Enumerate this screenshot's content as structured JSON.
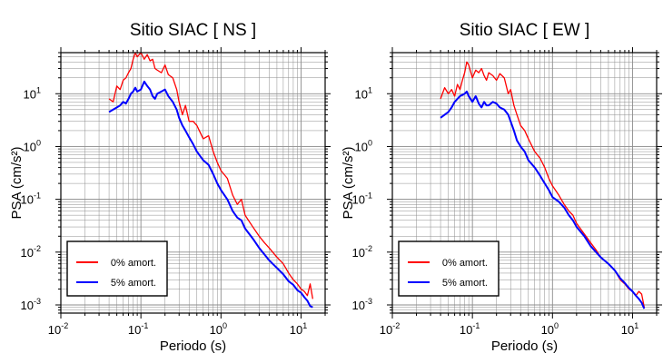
{
  "chart_data": [
    {
      "type": "line",
      "title": "Sitio SIAC [ NS ]",
      "xlabel": "Periodo (s)",
      "ylabel": "PSA (cm/s²)",
      "xscale": "log",
      "yscale": "log",
      "xlim": [
        0.01,
        20
      ],
      "ylim": [
        0.0007,
        60
      ],
      "grid": true,
      "legend_position": "bottom-left",
      "x_ticks": [
        {
          "value": 0.01,
          "base": "10",
          "exp": "-2"
        },
        {
          "value": 0.1,
          "base": "10",
          "exp": "-1"
        },
        {
          "value": 1,
          "base": "10",
          "exp": "0"
        },
        {
          "value": 10,
          "base": "10",
          "exp": "1"
        }
      ],
      "y_ticks": [
        {
          "value": 0.001,
          "base": "10",
          "exp": "-3"
        },
        {
          "value": 0.01,
          "base": "10",
          "exp": "-2"
        },
        {
          "value": 0.1,
          "base": "10",
          "exp": "-1"
        },
        {
          "value": 1,
          "base": "10",
          "exp": "0"
        },
        {
          "value": 10,
          "base": "10",
          "exp": "1"
        }
      ],
      "series": [
        {
          "name": "0% amort.",
          "color": "#ff0000",
          "x": [
            0.04,
            0.045,
            0.05,
            0.055,
            0.06,
            0.065,
            0.07,
            0.075,
            0.08,
            0.085,
            0.09,
            0.1,
            0.11,
            0.12,
            0.13,
            0.14,
            0.15,
            0.16,
            0.18,
            0.2,
            0.22,
            0.25,
            0.28,
            0.3,
            0.33,
            0.36,
            0.4,
            0.45,
            0.5,
            0.6,
            0.7,
            0.8,
            0.9,
            1.0,
            1.2,
            1.4,
            1.6,
            1.8,
            2.0,
            2.5,
            3.0,
            3.5,
            4.0,
            5.0,
            6.0,
            7.0,
            8.0,
            9.0,
            10.0,
            11.0,
            12.0,
            13.0,
            14.0
          ],
          "y": [
            8,
            7,
            14,
            12,
            18,
            20,
            25,
            30,
            45,
            60,
            50,
            60,
            45,
            55,
            42,
            45,
            30,
            28,
            25,
            35,
            23,
            20,
            12,
            7,
            4,
            6,
            3,
            3,
            2.5,
            1.4,
            1.6,
            0.8,
            0.5,
            0.35,
            0.25,
            0.12,
            0.08,
            0.1,
            0.05,
            0.03,
            0.02,
            0.015,
            0.012,
            0.008,
            0.006,
            0.004,
            0.003,
            0.0025,
            0.002,
            0.0018,
            0.0015,
            0.0025,
            0.0013
          ]
        },
        {
          "name": "5% amort.",
          "color": "#0000ff",
          "x": [
            0.04,
            0.045,
            0.05,
            0.055,
            0.06,
            0.065,
            0.07,
            0.075,
            0.08,
            0.085,
            0.09,
            0.1,
            0.11,
            0.12,
            0.13,
            0.14,
            0.15,
            0.16,
            0.18,
            0.2,
            0.22,
            0.25,
            0.28,
            0.3,
            0.33,
            0.36,
            0.4,
            0.45,
            0.5,
            0.6,
            0.7,
            0.8,
            0.9,
            1.0,
            1.2,
            1.4,
            1.6,
            1.8,
            2.0,
            2.5,
            3.0,
            3.5,
            4.0,
            5.0,
            6.0,
            7.0,
            8.0,
            9.0,
            10.0,
            11.0,
            12.0,
            13.0,
            14.0
          ],
          "y": [
            4.5,
            5,
            5.5,
            6,
            7,
            6.5,
            8,
            10,
            11,
            13,
            11,
            12,
            17,
            14,
            12,
            9,
            8,
            10,
            11,
            12,
            9,
            7,
            5,
            3.5,
            2.5,
            2,
            1.5,
            1.1,
            0.8,
            0.55,
            0.45,
            0.3,
            0.2,
            0.15,
            0.1,
            0.06,
            0.045,
            0.04,
            0.028,
            0.018,
            0.012,
            0.009,
            0.007,
            0.005,
            0.0038,
            0.0028,
            0.0024,
            0.0019,
            0.0017,
            0.0014,
            0.0012,
            0.00095,
            0.0009
          ]
        }
      ]
    },
    {
      "type": "line",
      "title": "Sitio SIAC [ EW ]",
      "xlabel": "Periodo (s)",
      "ylabel": "PSA (cm/s²)",
      "xscale": "log",
      "yscale": "log",
      "xlim": [
        0.01,
        20
      ],
      "ylim": [
        0.0007,
        60
      ],
      "grid": true,
      "legend_position": "bottom-left",
      "x_ticks": [
        {
          "value": 0.01,
          "base": "10",
          "exp": "-2"
        },
        {
          "value": 0.1,
          "base": "10",
          "exp": "-1"
        },
        {
          "value": 1,
          "base": "10",
          "exp": "0"
        },
        {
          "value": 10,
          "base": "10",
          "exp": "1"
        }
      ],
      "y_ticks": [
        {
          "value": 0.001,
          "base": "10",
          "exp": "-3"
        },
        {
          "value": 0.01,
          "base": "10",
          "exp": "-2"
        },
        {
          "value": 0.1,
          "base": "10",
          "exp": "-1"
        },
        {
          "value": 1,
          "base": "10",
          "exp": "0"
        },
        {
          "value": 10,
          "base": "10",
          "exp": "1"
        }
      ],
      "series": [
        {
          "name": "0% amort.",
          "color": "#ff0000",
          "x": [
            0.04,
            0.045,
            0.05,
            0.055,
            0.06,
            0.065,
            0.07,
            0.075,
            0.08,
            0.085,
            0.09,
            0.1,
            0.11,
            0.12,
            0.13,
            0.14,
            0.15,
            0.16,
            0.18,
            0.2,
            0.22,
            0.25,
            0.28,
            0.3,
            0.33,
            0.36,
            0.4,
            0.45,
            0.5,
            0.6,
            0.7,
            0.8,
            0.9,
            1.0,
            1.2,
            1.4,
            1.6,
            1.8,
            2.0,
            2.5,
            3.0,
            3.5,
            4.0,
            5.0,
            6.0,
            7.0,
            8.0,
            9.0,
            10.0,
            11.0,
            12.0,
            13.0,
            14.0
          ],
          "y": [
            8,
            13,
            10,
            12,
            9,
            15,
            12,
            18,
            25,
            40,
            35,
            20,
            28,
            25,
            30,
            22,
            18,
            25,
            22,
            18,
            24,
            20,
            10,
            12,
            6,
            4,
            2.5,
            2,
            1.4,
            0.8,
            0.6,
            0.4,
            0.25,
            0.18,
            0.12,
            0.08,
            0.06,
            0.05,
            0.035,
            0.022,
            0.015,
            0.011,
            0.008,
            0.006,
            0.0045,
            0.003,
            0.0025,
            0.002,
            0.0018,
            0.0015,
            0.0018,
            0.0016,
            0.0009
          ]
        },
        {
          "name": "5% amort.",
          "color": "#0000ff",
          "x": [
            0.04,
            0.045,
            0.05,
            0.055,
            0.06,
            0.065,
            0.07,
            0.075,
            0.08,
            0.085,
            0.09,
            0.1,
            0.11,
            0.12,
            0.13,
            0.14,
            0.15,
            0.16,
            0.18,
            0.2,
            0.22,
            0.25,
            0.28,
            0.3,
            0.33,
            0.36,
            0.4,
            0.45,
            0.5,
            0.6,
            0.7,
            0.8,
            0.9,
            1.0,
            1.2,
            1.4,
            1.6,
            1.8,
            2.0,
            2.5,
            3.0,
            3.5,
            4.0,
            5.0,
            6.0,
            7.0,
            8.0,
            9.0,
            10.0,
            11.0,
            12.0,
            13.0,
            14.0
          ],
          "y": [
            3.5,
            4,
            4.5,
            5.5,
            7,
            8,
            9,
            9.5,
            10,
            11,
            9,
            7,
            9,
            6.5,
            5.5,
            7,
            6,
            6,
            7,
            6.5,
            5.5,
            5,
            4,
            3,
            2,
            1.3,
            1,
            0.8,
            0.55,
            0.4,
            0.28,
            0.2,
            0.15,
            0.11,
            0.09,
            0.07,
            0.05,
            0.04,
            0.03,
            0.02,
            0.013,
            0.01,
            0.008,
            0.006,
            0.0045,
            0.0032,
            0.0026,
            0.0021,
            0.0018,
            0.0015,
            0.0013,
            0.0011,
            0.00085
          ]
        }
      ]
    }
  ]
}
